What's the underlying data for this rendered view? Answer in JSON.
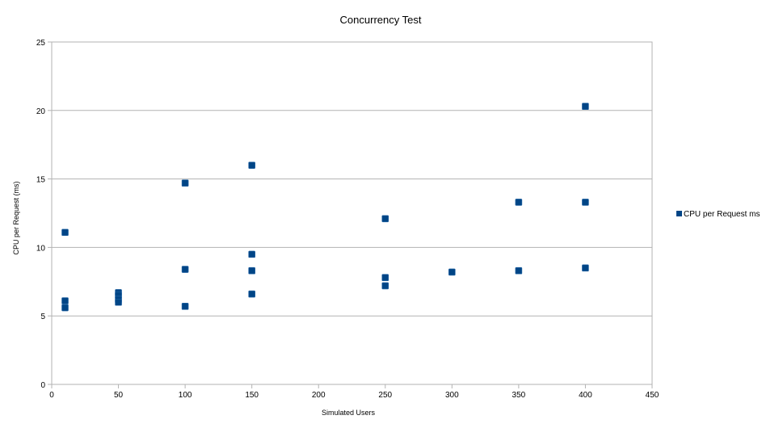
{
  "chart_data": {
    "type": "scatter",
    "title": "Concurrency Test",
    "xlabel": "Simulated Users",
    "ylabel": "CPU per Request (ms)",
    "xlim": [
      0,
      450
    ],
    "ylim": [
      0,
      25
    ],
    "xticks": [
      0,
      50,
      100,
      150,
      200,
      250,
      300,
      350,
      400,
      450
    ],
    "yticks": [
      0,
      5,
      10,
      15,
      20,
      25
    ],
    "grid": "horizontal",
    "legend_position": "right",
    "series": [
      {
        "name": "CPU per Request ms",
        "color": "#004586",
        "marker": "square",
        "points": [
          [
            10,
            11.1
          ],
          [
            10,
            6.1
          ],
          [
            10,
            5.6
          ],
          [
            50,
            6.7
          ],
          [
            50,
            6.5
          ],
          [
            50,
            6.2
          ],
          [
            50,
            6.0
          ],
          [
            100,
            14.7
          ],
          [
            100,
            8.4
          ],
          [
            100,
            5.7
          ],
          [
            150,
            16.0
          ],
          [
            150,
            9.5
          ],
          [
            150,
            8.3
          ],
          [
            150,
            6.6
          ],
          [
            250,
            12.1
          ],
          [
            250,
            7.8
          ],
          [
            250,
            7.2
          ],
          [
            300,
            8.2
          ],
          [
            350,
            13.3
          ],
          [
            350,
            8.3
          ],
          [
            400,
            20.3
          ],
          [
            400,
            13.3
          ],
          [
            400,
            8.5
          ]
        ]
      }
    ]
  }
}
